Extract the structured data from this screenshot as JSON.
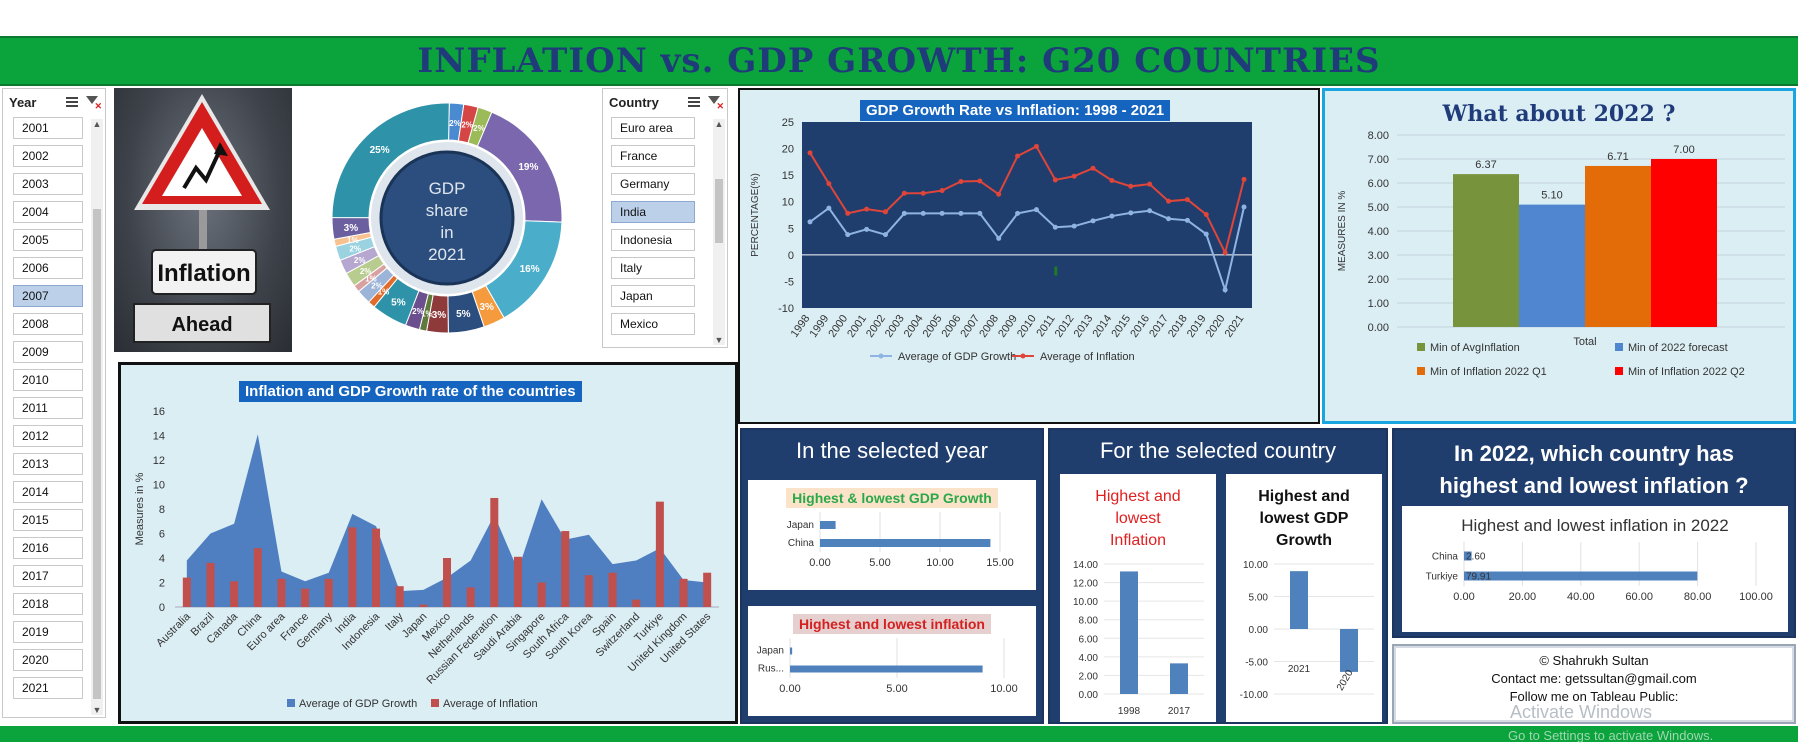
{
  "title": "INFLATION vs. GDP GROWTH: G20 COUNTRIES",
  "year_slicer": {
    "label": "Year",
    "items": [
      "2001",
      "2002",
      "2003",
      "2004",
      "2005",
      "2006",
      "2007",
      "2008",
      "2009",
      "2010",
      "2011",
      "2012",
      "2013",
      "2014",
      "2015",
      "2016",
      "2017",
      "2018",
      "2019",
      "2020",
      "2021"
    ],
    "selected": "2007"
  },
  "sign": {
    "text1": "Inflation",
    "text2": "Ahead"
  },
  "donut": {
    "center": [
      "GDP",
      "share",
      "in",
      "2021"
    ],
    "slice_labels": [
      "2%",
      "2%",
      "2%",
      "19%",
      "16%",
      "3%",
      "5%",
      "3%",
      "1%",
      "2%",
      "5%",
      "1%",
      "2%",
      "1%",
      "2%",
      "2%",
      "2%",
      "1%",
      "3%",
      "25%"
    ],
    "colors": {
      "teal": "#2e93a8",
      "purple": "#7b67ae",
      "cyan": "#4aaecb",
      "orange": "#f59a3d",
      "navy": "#2c4e7e"
    }
  },
  "country_slicer": {
    "label": "Country",
    "items": [
      "Euro area",
      "France",
      "Germany",
      "India",
      "Indonesia",
      "Italy",
      "Japan",
      "Mexico"
    ],
    "selected": "India"
  },
  "line_chart": {
    "title": "GDP Growth Rate vs Inflation: 1998 - 2021",
    "ylabel": "PERCENTAGE(%)",
    "legend": [
      "Average of GDP Growth",
      "Average of Inflation"
    ]
  },
  "chart_data": [
    {
      "type": "line",
      "title": "GDP Growth Rate vs Inflation: 1998 - 2021",
      "ylabel": "PERCENTAGE(%)",
      "x": [
        "1998",
        "1999",
        "2000",
        "2001",
        "2002",
        "2003",
        "2004",
        "2005",
        "2006",
        "2007",
        "2008",
        "2009",
        "2010",
        "2011",
        "2012",
        "2013",
        "2014",
        "2015",
        "2016",
        "2017",
        "2018",
        "2019",
        "2020",
        "2021"
      ],
      "ylim": [
        -10,
        25
      ],
      "yticks": [
        -10,
        -5,
        0,
        5,
        10,
        15,
        20,
        25
      ],
      "series": [
        {
          "name": "Average of GDP Growth",
          "color": "#8fb4e3",
          "values": [
            6.2,
            8.8,
            3.8,
            4.8,
            3.8,
            7.8,
            7.8,
            7.8,
            7.8,
            7.8,
            3.1,
            7.8,
            8.5,
            5.2,
            5.4,
            6.4,
            7.3,
            7.9,
            8.3,
            6.8,
            6.5,
            3.9,
            -6.6,
            9.0
          ]
        },
        {
          "name": "Average of Inflation",
          "color": "#e0453a",
          "values": [
            19.2,
            13.4,
            7.8,
            8.6,
            8.1,
            11.6,
            11.6,
            12.1,
            13.8,
            13.9,
            11.4,
            18.6,
            20.4,
            14.1,
            14.8,
            16.3,
            14.0,
            12.9,
            13.3,
            10.1,
            10.4,
            7.6,
            0.4,
            14.2
          ]
        }
      ]
    },
    {
      "type": "bar",
      "title": "What about 2022 ?",
      "categories": [
        "Total"
      ],
      "ylabel": "MEASURES IN %",
      "ylim": [
        0,
        8
      ],
      "yticks": [
        0,
        1,
        2,
        3,
        4,
        5,
        6,
        7,
        8
      ],
      "series": [
        {
          "name": "Min of AvgInflation",
          "color": "#77933c",
          "values": [
            6.37
          ]
        },
        {
          "name": "Min of 2022 forecast",
          "color": "#4f86cf",
          "values": [
            5.1
          ]
        },
        {
          "name": "Min of Inflation 2022 Q1",
          "color": "#e36c09",
          "values": [
            6.71
          ]
        },
        {
          "name": "Min of Inflation 2022 Q2",
          "color": "#ff0000",
          "values": [
            7.0
          ]
        }
      ],
      "value_labels": [
        "6.37",
        "5.10",
        "6.71",
        "7.00"
      ]
    },
    {
      "type": "area",
      "title": "Inflation and GDP Growth rate of the countries",
      "ylabel": "Measures in %",
      "categories": [
        "Australia",
        "Brazil",
        "Canada",
        "China",
        "Euro area",
        "France",
        "Germany",
        "India",
        "Indonesia",
        "Italy",
        "Japan",
        "Mexico",
        "Netherlands",
        "Russian Federation",
        "Saudi Arabia",
        "Singapore",
        "South Africa",
        "South Korea",
        "Spain",
        "Switzerland",
        "Turkiye",
        "United Kingdom",
        "United States"
      ],
      "ylim": [
        0,
        16
      ],
      "yticks": [
        0,
        2,
        4,
        6,
        8,
        10,
        12,
        14,
        16
      ],
      "series": [
        {
          "name": "Average of GDP Growth",
          "color": "#4f7fc1",
          "values": [
            3.8,
            6.0,
            6.8,
            14.1,
            2.9,
            2.1,
            2.8,
            7.6,
            6.6,
            1.3,
            1.4,
            2.4,
            3.8,
            7.5,
            3.0,
            8.8,
            5.5,
            5.9,
            3.5,
            3.8,
            4.8,
            2.2,
            2.0
          ]
        },
        {
          "name": "Average of Inflation",
          "color": "#c0504d",
          "values": [
            2.4,
            3.6,
            2.1,
            4.8,
            2.3,
            1.5,
            2.3,
            6.5,
            6.4,
            1.7,
            0.2,
            4.0,
            1.6,
            8.9,
            4.1,
            2.0,
            6.2,
            2.6,
            2.8,
            0.6,
            8.6,
            2.3,
            2.8
          ]
        }
      ],
      "legend": [
        "Average of GDP Growth",
        "Average of Inflation"
      ]
    },
    {
      "type": "bar",
      "title": "Highest & lowest GDP Growth",
      "categories": [
        "Japan",
        "China"
      ],
      "values": [
        1.3,
        14.2
      ],
      "xlim": [
        0,
        15
      ],
      "xticks": [
        "0.00",
        "5.00",
        "10.00",
        "15.00"
      ]
    },
    {
      "type": "bar",
      "title": "Highest and lowest inflation",
      "categories": [
        "Japan",
        "Rus..."
      ],
      "values": [
        0.1,
        9.0
      ],
      "xlim": [
        0,
        10
      ],
      "xticks": [
        "0.00",
        "5.00",
        "10.00"
      ]
    },
    {
      "type": "bar",
      "title": "Highest and lowest Inflation",
      "categories": [
        "1998",
        "2017"
      ],
      "values": [
        13.2,
        3.3
      ],
      "ylim": [
        0,
        14
      ],
      "yticks": [
        "14.00",
        "12.00",
        "10.00",
        "8.00",
        "6.00",
        "4.00",
        "2.00",
        "0.00"
      ]
    },
    {
      "type": "bar",
      "title": "Highest and lowest GDP Growth",
      "categories": [
        "2021",
        "2020"
      ],
      "values": [
        8.9,
        -6.6
      ],
      "ylim": [
        -10,
        10
      ],
      "yticks": [
        "10.00",
        "5.00",
        "0.00",
        "-5.00",
        "-10.00"
      ]
    },
    {
      "type": "bar",
      "title": "Highest and lowest inflation in 2022",
      "categories": [
        "China",
        "Turkiye"
      ],
      "values": [
        2.6,
        79.91
      ],
      "value_labels": [
        "2.60",
        "79.91"
      ],
      "xlim": [
        0,
        100
      ],
      "xticks": [
        "0.00",
        "20.00",
        "40.00",
        "60.00",
        "80.00",
        "100.00"
      ]
    }
  ],
  "bar2022": {
    "title": "What about 2022 ?",
    "xlabel": "Total",
    "ylabel": "MEASURES IN %"
  },
  "area_chart": {
    "title": "Inflation and GDP Growth rate of the countries",
    "ylabel": "Measures in %"
  },
  "selected_year": {
    "heading": "In the selected year",
    "gdp_title": "Highest & lowest GDP Growth",
    "inf_title": "Highest and lowest inflation"
  },
  "selected_country": {
    "heading": "For the selected country",
    "inf_title": [
      "Highest and",
      "lowest",
      "Inflation"
    ],
    "gdp_title": [
      "Highest and",
      "lowest GDP",
      "Growth"
    ]
  },
  "inflation_2022": {
    "heading1": "In 2022, which country has",
    "heading2": "highest and lowest inflation ?",
    "chart_title": "Highest and lowest inflation in 2022"
  },
  "credits": {
    "line1": "© Shahrukh Sultan",
    "line2": "Contact me: getssultan@gmail.com",
    "line3": "Follow me on Tableau Public:"
  },
  "watermark": {
    "line1": "Activate Windows",
    "line2": "Go to Settings to activate Windows."
  }
}
